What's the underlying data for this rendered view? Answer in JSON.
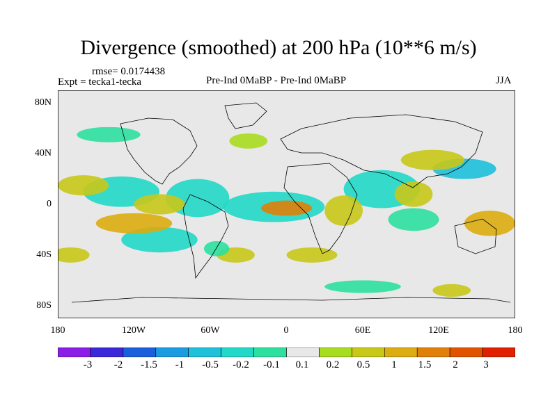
{
  "title": "Divergence (smoothed) at 200 hPa (10**6 m/s)",
  "rmse_label": "rmse= 0.0174438",
  "expt_label": "Expt = tecka1-tecka",
  "center_label": "Pre-Ind 0MaBP - Pre-Ind 0MaBP",
  "season_label": "JJA",
  "chart_data": {
    "type": "heatmap",
    "title": "Divergence (smoothed) at 200 hPa (10**6 m/s)",
    "projection": "cylindrical equidistant",
    "lon_range": [
      -180,
      180
    ],
    "lat_range": [
      -90,
      90
    ],
    "x_ticks": [
      "180",
      "120W",
      "60W",
      "0",
      "60E",
      "120E",
      "180"
    ],
    "y_ticks": [
      "80N",
      "40N",
      "0",
      "40S",
      "80S"
    ],
    "colorbar_labels": [
      "-3",
      "-2",
      "-1.5",
      "-1",
      "-0.5",
      "-0.2",
      "-0.1",
      "0.1",
      "0.2",
      "0.5",
      "1",
      "1.5",
      "2",
      "3"
    ],
    "colors": [
      "#8a1ee6",
      "#3b28d8",
      "#1a5fdc",
      "#1b9be0",
      "#1ec0da",
      "#22d8c8",
      "#2ee0a0",
      "#e8e8e8",
      "#a8dc20",
      "#c8c818",
      "#dcac10",
      "#e08008",
      "#e05400",
      "#e02000"
    ],
    "regions": [
      {
        "lon": -130,
        "lat": 10,
        "rx": 30,
        "ry": 12,
        "bin": 5
      },
      {
        "lon": -70,
        "lat": 5,
        "rx": 25,
        "ry": 15,
        "bin": 5
      },
      {
        "lon": -10,
        "lat": -2,
        "rx": 40,
        "ry": 12,
        "bin": 5
      },
      {
        "lon": 75,
        "lat": 12,
        "rx": 30,
        "ry": 15,
        "bin": 5
      },
      {
        "lon": 140,
        "lat": 28,
        "rx": 25,
        "ry": 8,
        "bin": 4
      },
      {
        "lon": -100,
        "lat": -28,
        "rx": 30,
        "ry": 10,
        "bin": 5
      },
      {
        "lon": 100,
        "lat": -12,
        "rx": 20,
        "ry": 9,
        "bin": 6
      },
      {
        "lon": -140,
        "lat": 55,
        "rx": 25,
        "ry": 6,
        "bin": 6
      },
      {
        "lon": -160,
        "lat": 15,
        "rx": 20,
        "ry": 8,
        "bin": 9
      },
      {
        "lon": -100,
        "lat": 0,
        "rx": 20,
        "ry": 8,
        "bin": 9
      },
      {
        "lon": -120,
        "lat": -15,
        "rx": 30,
        "ry": 8,
        "bin": 10
      },
      {
        "lon": 0,
        "lat": -3,
        "rx": 20,
        "ry": 6,
        "bin": 11
      },
      {
        "lon": 45,
        "lat": -5,
        "rx": 15,
        "ry": 12,
        "bin": 9
      },
      {
        "lon": 160,
        "lat": -15,
        "rx": 20,
        "ry": 10,
        "bin": 10
      },
      {
        "lon": 115,
        "lat": 35,
        "rx": 25,
        "ry": 8,
        "bin": 9
      },
      {
        "lon": 100,
        "lat": 8,
        "rx": 15,
        "ry": 10,
        "bin": 9
      },
      {
        "lon": -30,
        "lat": 50,
        "rx": 15,
        "ry": 6,
        "bin": 8
      },
      {
        "lon": -170,
        "lat": -40,
        "rx": 15,
        "ry": 6,
        "bin": 9
      },
      {
        "lon": 20,
        "lat": -40,
        "rx": 20,
        "ry": 6,
        "bin": 9
      },
      {
        "lon": -40,
        "lat": -40,
        "rx": 15,
        "ry": 6,
        "bin": 9
      },
      {
        "lon": 60,
        "lat": -65,
        "rx": 30,
        "ry": 5,
        "bin": 6
      },
      {
        "lon": 130,
        "lat": -68,
        "rx": 15,
        "ry": 5,
        "bin": 9
      },
      {
        "lon": -55,
        "lat": -35,
        "rx": 10,
        "ry": 6,
        "bin": 6
      }
    ]
  }
}
